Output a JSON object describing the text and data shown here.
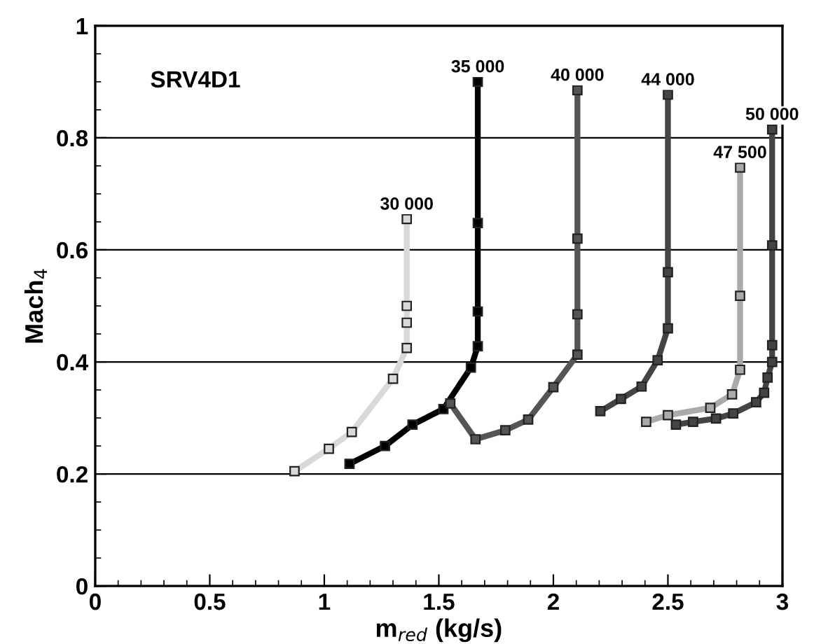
{
  "chart_data": {
    "type": "line",
    "xlabel": "m$_{red}$ (kg/s)",
    "ylabel": "Mach$_{4}$",
    "annotations": [
      "SRV4D1"
    ],
    "xlim": [
      0,
      3
    ],
    "ylim": [
      0,
      1
    ],
    "xticks": [
      0,
      0.5,
      1,
      1.5,
      2,
      2.5,
      3
    ],
    "yticks": [
      0,
      0.2,
      0.4,
      0.6,
      0.8,
      1
    ],
    "grid": "y",
    "marker": "square",
    "line_style": "solid",
    "series": [
      {
        "name": "30 000",
        "color": "#d9d9d9",
        "x": [
          0.87,
          1.02,
          1.12,
          1.3,
          1.36,
          1.36,
          1.36,
          1.36
        ],
        "values": [
          0.205,
          0.245,
          0.275,
          0.37,
          0.425,
          0.47,
          0.5,
          0.655
        ]
      },
      {
        "name": "35 000",
        "color": "#000000",
        "x": [
          1.11,
          1.265,
          1.385,
          1.52,
          1.64,
          1.67,
          1.67,
          1.67,
          1.67
        ],
        "values": [
          0.218,
          0.25,
          0.288,
          0.316,
          0.39,
          0.428,
          0.49,
          0.648,
          0.9
        ]
      },
      {
        "name": "40 000",
        "color": "#555555",
        "x": [
          1.55,
          1.66,
          1.79,
          1.89,
          2.0,
          2.105,
          2.105,
          2.105,
          2.105
        ],
        "values": [
          0.326,
          0.262,
          0.278,
          0.297,
          0.355,
          0.413,
          0.485,
          0.62,
          0.885
        ]
      },
      {
        "name": "44 000",
        "color": "#444444",
        "x": [
          2.205,
          2.295,
          2.385,
          2.455,
          2.5,
          2.5,
          2.5
        ],
        "values": [
          0.312,
          0.334,
          0.356,
          0.403,
          0.46,
          0.56,
          0.877
        ]
      },
      {
        "name": "47 500",
        "color": "#aaaaaa",
        "x": [
          2.405,
          2.5,
          2.685,
          2.78,
          2.815,
          2.815,
          2.815
        ],
        "values": [
          0.293,
          0.305,
          0.318,
          0.342,
          0.386,
          0.518,
          0.747
        ]
      },
      {
        "name": "50 000",
        "color": "#444444",
        "x": [
          2.535,
          2.61,
          2.71,
          2.785,
          2.885,
          2.92,
          2.935,
          2.955,
          2.955,
          2.955,
          2.955
        ],
        "values": [
          0.288,
          0.293,
          0.299,
          0.308,
          0.328,
          0.345,
          0.372,
          0.4,
          0.43,
          0.608,
          0.815
        ]
      }
    ]
  }
}
